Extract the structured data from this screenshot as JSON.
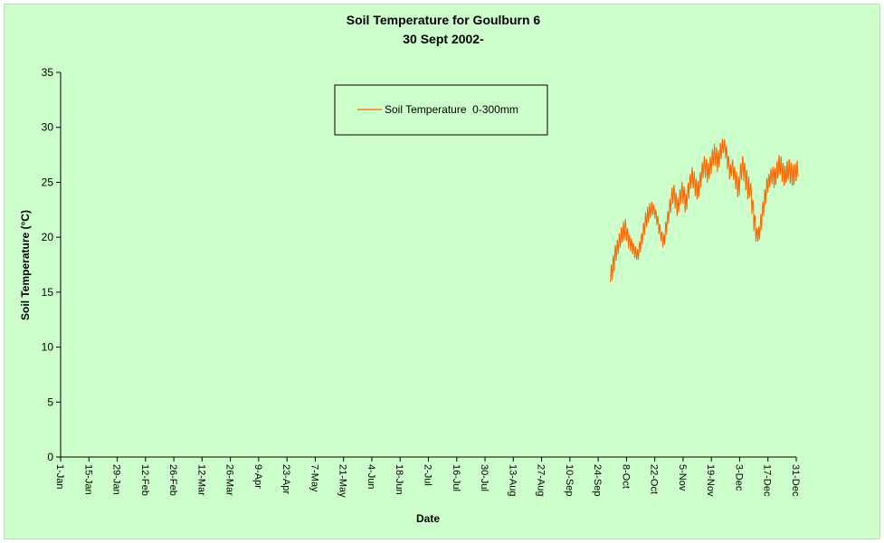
{
  "chart_data": {
    "type": "line",
    "title": "Soil Temperature for Goulburn 6",
    "subtitle": "30 Sept 2002-",
    "xlabel": "Date",
    "ylabel": "Soil Temperature (°C)",
    "ylim": [
      0,
      35
    ],
    "yticks": [
      0,
      5,
      10,
      15,
      20,
      25,
      30,
      35
    ],
    "xlim": [
      1,
      365
    ],
    "xtick_labels": [
      "1-Jan",
      "15-Jan",
      "29-Jan",
      "12-Feb",
      "26-Feb",
      "12-Mar",
      "26-Mar",
      "9-Apr",
      "23-Apr",
      "7-May",
      "21-May",
      "4-Jun",
      "18-Jun",
      "2-Jul",
      "16-Jul",
      "30-Jul",
      "13-Aug",
      "27-Aug",
      "10-Sep",
      "24-Sep",
      "8-Oct",
      "22-Oct",
      "5-Nov",
      "19-Nov",
      "3-Dec",
      "17-Dec",
      "31-Dec"
    ],
    "grid": false,
    "legend_position": "top-center",
    "series": [
      {
        "name": "Soil Temperature  0-300mm",
        "color": "#ff6600",
        "x": [
          1,
          8,
          15,
          22,
          29,
          36,
          43,
          50,
          57,
          64,
          71,
          78,
          85,
          92
        ],
        "x_labels": [
          "30-Sep",
          "7-Oct",
          "14-Oct",
          "21-Oct",
          "28-Oct",
          "4-Nov",
          "11-Nov",
          "18-Nov",
          "25-Nov",
          "2-Dec",
          "9-Dec",
          "16-Dec",
          "23-Dec",
          "30-Dec"
        ],
        "x_dates": [
          "30-Sep",
          "1-Oct",
          "2-Oct",
          "3-Oct",
          "4-Oct",
          "5-Oct",
          "6-Oct",
          "7-Oct",
          "8-Oct",
          "9-Oct",
          "10-Oct",
          "11-Oct",
          "12-Oct",
          "13-Oct",
          "14-Oct",
          "15-Oct",
          "16-Oct",
          "17-Oct",
          "18-Oct",
          "19-Oct",
          "20-Oct",
          "21-Oct",
          "22-Oct",
          "23-Oct",
          "24-Oct",
          "25-Oct",
          "26-Oct",
          "27-Oct",
          "28-Oct",
          "29-Oct",
          "30-Oct",
          "31-Oct",
          "1-Nov",
          "2-Nov",
          "3-Nov",
          "4-Nov",
          "5-Nov",
          "6-Nov",
          "7-Nov",
          "8-Nov",
          "9-Nov",
          "10-Nov",
          "11-Nov",
          "12-Nov",
          "13-Nov",
          "14-Nov",
          "15-Nov",
          "16-Nov",
          "17-Nov",
          "18-Nov",
          "19-Nov",
          "20-Nov",
          "21-Nov",
          "22-Nov",
          "23-Nov",
          "24-Nov",
          "25-Nov",
          "26-Nov",
          "27-Nov",
          "28-Nov",
          "29-Nov",
          "30-Nov",
          "1-Dec",
          "2-Dec",
          "3-Dec",
          "4-Dec",
          "5-Dec",
          "6-Dec",
          "7-Dec",
          "8-Dec",
          "9-Dec",
          "10-Dec",
          "11-Dec",
          "12-Dec",
          "13-Dec",
          "14-Dec",
          "15-Dec",
          "16-Dec",
          "17-Dec",
          "18-Dec",
          "19-Dec",
          "20-Dec",
          "21-Dec",
          "22-Dec",
          "23-Dec",
          "24-Dec",
          "25-Dec",
          "26-Dec",
          "27-Dec",
          "28-Dec",
          "29-Dec",
          "30-Dec",
          "31-Dec"
        ],
        "daily_min": [
          15.6,
          16.5,
          17.5,
          18.0,
          18.6,
          19.0,
          19.3,
          19.8,
          19.5,
          18.9,
          18.6,
          18.3,
          18.0,
          17.8,
          18.3,
          19.0,
          19.8,
          20.5,
          21.0,
          21.5,
          21.8,
          22.0,
          21.6,
          21.0,
          20.2,
          19.5,
          19.0,
          19.8,
          20.8,
          21.8,
          22.6,
          23.0,
          22.5,
          21.8,
          22.6,
          23.2,
          22.8,
          22.0,
          23.0,
          24.0,
          24.5,
          24.2,
          23.5,
          23.2,
          24.0,
          25.0,
          25.5,
          25.2,
          24.8,
          25.2,
          26.0,
          26.5,
          26.2,
          25.8,
          26.6,
          27.2,
          27.6,
          27.0,
          26.0,
          25.2,
          25.6,
          25.0,
          24.2,
          23.4,
          24.8,
          25.5,
          25.0,
          24.0,
          23.2,
          23.6,
          22.0,
          20.5,
          19.5,
          19.4,
          20.2,
          21.5,
          22.5,
          23.6,
          24.2,
          24.8,
          24.6,
          24.2,
          24.8,
          25.2,
          25.4,
          24.8,
          24.4,
          24.8,
          25.0,
          24.6,
          24.4,
          24.8,
          25.0
        ],
        "daily_max": [
          17.8,
          18.6,
          19.5,
          20.0,
          20.6,
          21.2,
          21.6,
          21.8,
          21.0,
          20.4,
          20.0,
          19.6,
          19.2,
          19.0,
          19.8,
          20.5,
          21.5,
          22.4,
          22.8,
          23.2,
          23.4,
          23.0,
          22.6,
          22.0,
          21.2,
          20.6,
          20.4,
          21.6,
          22.6,
          23.6,
          24.6,
          25.0,
          24.2,
          23.8,
          24.6,
          25.2,
          24.8,
          24.2,
          25.2,
          26.0,
          26.6,
          26.2,
          25.6,
          25.4,
          26.2,
          27.0,
          27.6,
          27.4,
          27.0,
          27.6,
          28.2,
          28.6,
          28.4,
          28.2,
          28.8,
          29.2,
          29.0,
          28.4,
          27.6,
          26.8,
          27.2,
          26.6,
          26.0,
          25.6,
          27.0,
          27.6,
          27.0,
          26.4,
          25.6,
          25.0,
          23.6,
          22.2,
          21.0,
          21.2,
          22.2,
          23.4,
          24.6,
          25.6,
          26.0,
          26.4,
          26.6,
          26.6,
          27.2,
          27.8,
          27.6,
          27.0,
          26.8,
          27.2,
          27.4,
          27.0,
          26.8,
          27.0,
          27.2
        ],
        "x_range": [
          "30-Sep",
          "31-Dec"
        ],
        "y_range": [
          15.5,
          29.3
        ]
      }
    ]
  }
}
